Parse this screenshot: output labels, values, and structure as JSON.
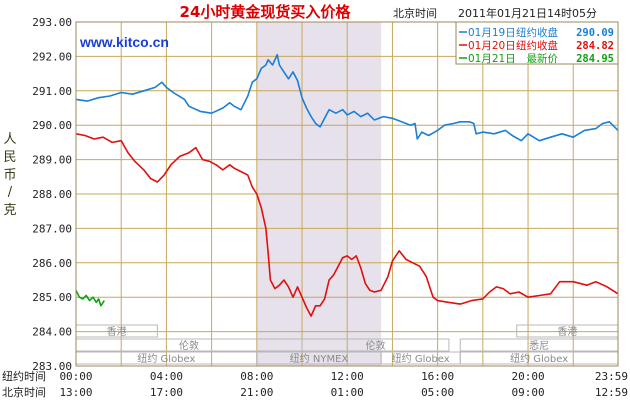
{
  "header": {
    "title": "24小时黄金现货买入价格",
    "site": "www.kitco.cn",
    "tz_label": "北京时间",
    "timestamp": "2011年01月21日14时05分"
  },
  "axis": {
    "ylabel_chars": [
      "人",
      "民",
      "币",
      "/",
      "克"
    ],
    "row_label_ny": "纽约时间",
    "row_label_bj": "北京时间"
  },
  "colors": {
    "grid": "#c8a85a",
    "shade": "#e6e1ea",
    "line_0119": "#1a7fd6",
    "line_0120": "#e01010",
    "line_0121": "#12a012",
    "title": "#dd0000",
    "site": "#1a3fd6",
    "axis_text": "#222222"
  },
  "sessions": [
    {
      "label": "香港",
      "row": 0,
      "start": 0.0,
      "end": 3.6
    },
    {
      "label": "香港",
      "row": 0,
      "start": 19.5,
      "end": 23.98
    },
    {
      "label": "伦敦",
      "row": 1,
      "start": 0.0,
      "end": 10.0
    },
    {
      "label": "伦敦",
      "row": 1,
      "start": 10.0,
      "end": 16.5
    },
    {
      "label": "悉尼",
      "row": 1,
      "start": 17.0,
      "end": 23.98
    },
    {
      "label": "纽约 Globex",
      "row": 2,
      "start": 0.0,
      "end": 8.0
    },
    {
      "label": "纽约 NYMEX",
      "row": 2,
      "start": 8.0,
      "end": 13.5
    },
    {
      "label": "纽约 Globex",
      "row": 2,
      "start": 13.5,
      "end": 17.0
    },
    {
      "label": "纽约 Globex",
      "row": 2,
      "start": 17.0,
      "end": 23.98
    }
  ],
  "chart_data": {
    "type": "line",
    "title": "24小时黄金现货买入价格",
    "ylabel": "人民币/克",
    "xlabel": "",
    "ylim": [
      283,
      293
    ],
    "xlim": [
      0,
      23.98
    ],
    "yticks": [
      283,
      284,
      285,
      286,
      287,
      288,
      289,
      290,
      291,
      292,
      293
    ],
    "ytick_labels": [
      "283.00",
      "284.00",
      "285.00",
      "286.00",
      "287.00",
      "288.00",
      "289.00",
      "290.00",
      "291.00",
      "292.00",
      "293.00"
    ],
    "xticks": [
      0,
      4,
      8,
      12,
      16,
      20,
      23.98
    ],
    "xtick_labels_ny": [
      "00:00",
      "04:00",
      "08:00",
      "12:00",
      "16:00",
      "20:00",
      "23:59"
    ],
    "xtick_labels_bj": [
      "13:00",
      "17:00",
      "21:00",
      "01:00",
      "05:00",
      "09:00",
      "12:59"
    ],
    "x_unit": "hours since 00:00 New York time",
    "grid": true,
    "legend_position": "top-right",
    "shaded_band": {
      "start": 8.0,
      "end": 13.5
    },
    "series": [
      {
        "name": "01月19日",
        "legend_label": "纽约收盘",
        "legend_value": "290.09",
        "color": "#1a7fd6",
        "points": [
          [
            0,
            290.75
          ],
          [
            0.5,
            290.7
          ],
          [
            1.0,
            290.8
          ],
          [
            1.5,
            290.85
          ],
          [
            2.0,
            290.95
          ],
          [
            2.5,
            290.9
          ],
          [
            3.0,
            291.0
          ],
          [
            3.5,
            291.1
          ],
          [
            3.8,
            291.25
          ],
          [
            4.0,
            291.1
          ],
          [
            4.3,
            290.95
          ],
          [
            4.8,
            290.75
          ],
          [
            5.0,
            290.55
          ],
          [
            5.5,
            290.4
          ],
          [
            6.0,
            290.35
          ],
          [
            6.5,
            290.5
          ],
          [
            6.8,
            290.65
          ],
          [
            7.0,
            290.55
          ],
          [
            7.3,
            290.45
          ],
          [
            7.6,
            290.85
          ],
          [
            7.8,
            291.25
          ],
          [
            8.0,
            291.35
          ],
          [
            8.2,
            291.65
          ],
          [
            8.4,
            291.75
          ],
          [
            8.5,
            291.9
          ],
          [
            8.7,
            291.75
          ],
          [
            8.9,
            292.05
          ],
          [
            9.0,
            291.75
          ],
          [
            9.2,
            291.55
          ],
          [
            9.4,
            291.35
          ],
          [
            9.6,
            291.55
          ],
          [
            9.8,
            291.3
          ],
          [
            10.0,
            290.8
          ],
          [
            10.2,
            290.5
          ],
          [
            10.4,
            290.25
          ],
          [
            10.6,
            290.05
          ],
          [
            10.8,
            289.95
          ],
          [
            11.0,
            290.2
          ],
          [
            11.2,
            290.45
          ],
          [
            11.5,
            290.35
          ],
          [
            11.8,
            290.45
          ],
          [
            12.0,
            290.3
          ],
          [
            12.3,
            290.4
          ],
          [
            12.6,
            290.25
          ],
          [
            12.9,
            290.35
          ],
          [
            13.2,
            290.15
          ],
          [
            13.6,
            290.25
          ],
          [
            14.0,
            290.2
          ],
          [
            14.4,
            290.1
          ],
          [
            14.8,
            290.0
          ],
          [
            15.0,
            290.05
          ],
          [
            15.1,
            289.6
          ],
          [
            15.3,
            289.8
          ],
          [
            15.6,
            289.7
          ],
          [
            16.0,
            289.85
          ],
          [
            16.3,
            290.0
          ],
          [
            16.7,
            290.05
          ],
          [
            17.0,
            290.1
          ],
          [
            17.4,
            290.1
          ],
          [
            17.6,
            290.05
          ],
          [
            17.7,
            289.75
          ],
          [
            18.0,
            289.8
          ],
          [
            18.5,
            289.75
          ],
          [
            19.0,
            289.85
          ],
          [
            19.3,
            289.7
          ],
          [
            19.7,
            289.55
          ],
          [
            20.0,
            289.75
          ],
          [
            20.5,
            289.55
          ],
          [
            21.0,
            289.65
          ],
          [
            21.5,
            289.75
          ],
          [
            22.0,
            289.65
          ],
          [
            22.5,
            289.85
          ],
          [
            23.0,
            289.9
          ],
          [
            23.3,
            290.05
          ],
          [
            23.6,
            290.1
          ],
          [
            23.98,
            289.85
          ]
        ]
      },
      {
        "name": "01月20日",
        "legend_label": "纽约收盘",
        "legend_value": "284.82",
        "color": "#e01010",
        "points": [
          [
            0,
            289.75
          ],
          [
            0.4,
            289.7
          ],
          [
            0.8,
            289.6
          ],
          [
            1.2,
            289.65
          ],
          [
            1.6,
            289.5
          ],
          [
            2.0,
            289.55
          ],
          [
            2.3,
            289.2
          ],
          [
            2.6,
            288.95
          ],
          [
            3.0,
            288.7
          ],
          [
            3.3,
            288.45
          ],
          [
            3.6,
            288.35
          ],
          [
            3.9,
            288.55
          ],
          [
            4.2,
            288.85
          ],
          [
            4.6,
            289.1
          ],
          [
            5.0,
            289.2
          ],
          [
            5.3,
            289.35
          ],
          [
            5.6,
            289.0
          ],
          [
            5.9,
            288.95
          ],
          [
            6.2,
            288.85
          ],
          [
            6.5,
            288.7
          ],
          [
            6.8,
            288.85
          ],
          [
            7.0,
            288.75
          ],
          [
            7.3,
            288.65
          ],
          [
            7.6,
            288.55
          ],
          [
            7.8,
            288.2
          ],
          [
            8.0,
            288.0
          ],
          [
            8.2,
            287.6
          ],
          [
            8.4,
            287.0
          ],
          [
            8.5,
            286.3
          ],
          [
            8.6,
            285.5
          ],
          [
            8.8,
            285.25
          ],
          [
            9.0,
            285.35
          ],
          [
            9.2,
            285.5
          ],
          [
            9.4,
            285.3
          ],
          [
            9.6,
            285.0
          ],
          [
            9.8,
            285.3
          ],
          [
            10.0,
            285.0
          ],
          [
            10.2,
            284.7
          ],
          [
            10.4,
            284.45
          ],
          [
            10.6,
            284.75
          ],
          [
            10.8,
            284.75
          ],
          [
            11.0,
            284.95
          ],
          [
            11.2,
            285.5
          ],
          [
            11.4,
            285.65
          ],
          [
            11.6,
            285.9
          ],
          [
            11.8,
            286.15
          ],
          [
            12.0,
            286.2
          ],
          [
            12.2,
            286.1
          ],
          [
            12.4,
            286.2
          ],
          [
            12.6,
            285.85
          ],
          [
            12.8,
            285.4
          ],
          [
            13.0,
            285.2
          ],
          [
            13.2,
            285.15
          ],
          [
            13.5,
            285.2
          ],
          [
            13.8,
            285.6
          ],
          [
            14.0,
            286.05
          ],
          [
            14.3,
            286.35
          ],
          [
            14.6,
            286.1
          ],
          [
            14.9,
            286.0
          ],
          [
            15.2,
            285.9
          ],
          [
            15.5,
            285.6
          ],
          [
            15.8,
            285.0
          ],
          [
            16.0,
            284.9
          ],
          [
            16.5,
            284.85
          ],
          [
            17.0,
            284.8
          ],
          [
            17.5,
            284.9
          ],
          [
            18.0,
            284.95
          ],
          [
            18.3,
            285.15
          ],
          [
            18.6,
            285.3
          ],
          [
            18.9,
            285.25
          ],
          [
            19.2,
            285.1
          ],
          [
            19.6,
            285.15
          ],
          [
            20.0,
            285.0
          ],
          [
            20.5,
            285.05
          ],
          [
            21.0,
            285.1
          ],
          [
            21.4,
            285.45
          ],
          [
            22.0,
            285.45
          ],
          [
            22.6,
            285.35
          ],
          [
            23.0,
            285.45
          ],
          [
            23.5,
            285.3
          ],
          [
            23.98,
            285.1
          ]
        ]
      },
      {
        "name": "01月21日",
        "legend_label": "最新价",
        "legend_value": "284.95",
        "color": "#12a012",
        "points": [
          [
            0,
            285.2
          ],
          [
            0.15,
            285.0
          ],
          [
            0.3,
            284.95
          ],
          [
            0.45,
            285.05
          ],
          [
            0.6,
            284.9
          ],
          [
            0.75,
            285.0
          ],
          [
            0.9,
            284.85
          ],
          [
            1.0,
            284.95
          ],
          [
            1.1,
            284.75
          ],
          [
            1.25,
            284.9
          ]
        ]
      }
    ]
  }
}
